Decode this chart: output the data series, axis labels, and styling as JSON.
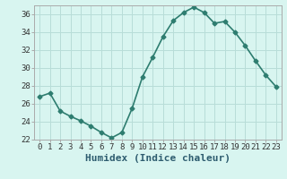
{
  "x": [
    0,
    1,
    2,
    3,
    4,
    5,
    6,
    7,
    8,
    9,
    10,
    11,
    12,
    13,
    14,
    15,
    16,
    17,
    18,
    19,
    20,
    21,
    22,
    23
  ],
  "y": [
    26.8,
    27.2,
    25.2,
    24.6,
    24.1,
    23.5,
    22.8,
    22.2,
    22.8,
    25.5,
    29.0,
    31.2,
    33.5,
    35.3,
    36.2,
    36.8,
    36.2,
    35.0,
    35.2,
    34.0,
    32.5,
    30.8,
    29.2,
    27.9
  ],
  "line_color": "#2e7d70",
  "marker": "D",
  "marker_size": 2.5,
  "bg_color": "#d8f5f0",
  "grid_color": "#b8ddd8",
  "xlabel": "Humidex (Indice chaleur)",
  "ylim": [
    22,
    37
  ],
  "xlim": [
    -0.5,
    23.5
  ],
  "yticks": [
    22,
    24,
    26,
    28,
    30,
    32,
    34,
    36
  ],
  "xticks": [
    0,
    1,
    2,
    3,
    4,
    5,
    6,
    7,
    8,
    9,
    10,
    11,
    12,
    13,
    14,
    15,
    16,
    17,
    18,
    19,
    20,
    21,
    22,
    23
  ],
  "xlabel_color": "#2e5d70",
  "xlabel_fontsize": 8,
  "tick_fontsize": 6.5,
  "line_width": 1.2,
  "spine_color": "#aaaaaa"
}
